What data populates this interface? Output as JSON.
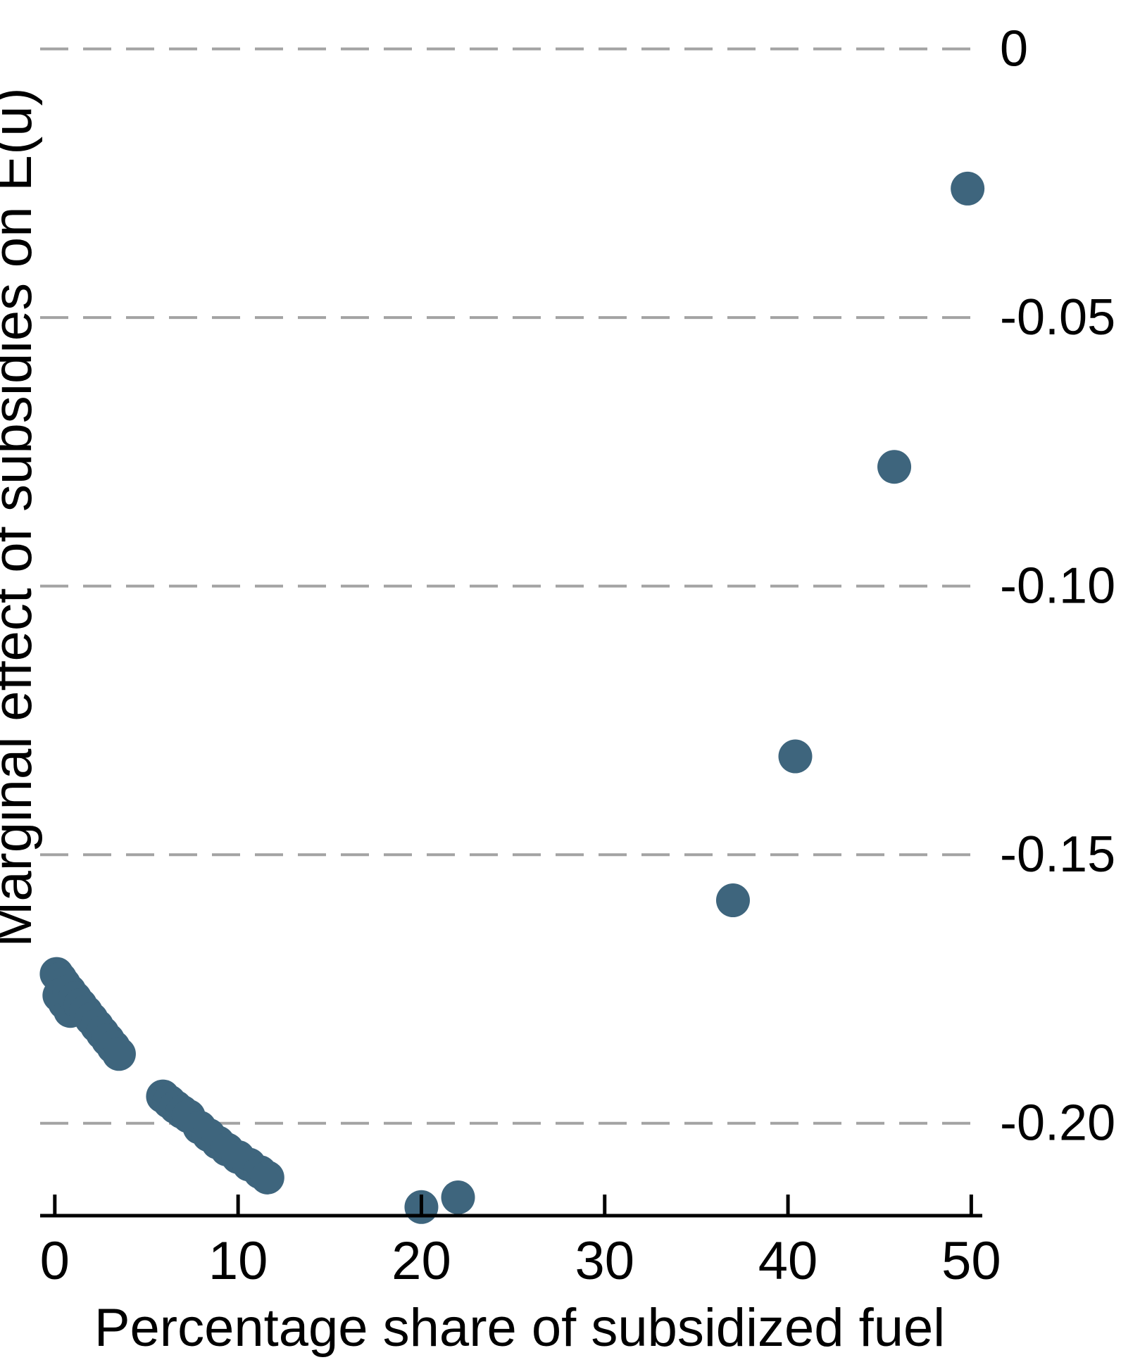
{
  "chart_data": {
    "type": "scatter",
    "title": "",
    "xlabel": "Percentage share of subsidized fuel",
    "ylabel": "Marginal effect of subsidies on E(u)",
    "x_ticks": [
      {
        "value": 0,
        "label": "0"
      },
      {
        "value": 10,
        "label": "10"
      },
      {
        "value": 20,
        "label": "20"
      },
      {
        "value": 30,
        "label": "30"
      },
      {
        "value": 40,
        "label": "40"
      },
      {
        "value": 50,
        "label": "50"
      }
    ],
    "y_ticks": [
      {
        "value": 0.0,
        "label": "0"
      },
      {
        "value": -0.05,
        "label": "-0.05"
      },
      {
        "value": -0.1,
        "label": "-0.10"
      },
      {
        "value": -0.15,
        "label": "-0.15"
      },
      {
        "value": -0.2,
        "label": "-0.20"
      }
    ],
    "xlim": [
      -0.8,
      50.6
    ],
    "ylim": [
      -0.2172,
      0.004
    ],
    "grid": "horizontal-dashed",
    "legend_position": "none",
    "marker_color": "#3e657d",
    "marker_radius_px": 24,
    "gridline_color": "#a3a3a3",
    "axis_color": "#000000",
    "points": [
      [
        0.1,
        -0.1722
      ],
      [
        0.3,
        -0.1731
      ],
      [
        0.5,
        -0.1741
      ],
      [
        0.25,
        -0.1762
      ],
      [
        0.55,
        -0.1776
      ],
      [
        0.85,
        -0.1791
      ],
      [
        0.8,
        -0.1754
      ],
      [
        1.1,
        -0.1767
      ],
      [
        1.4,
        -0.178
      ],
      [
        1.7,
        -0.1793
      ],
      [
        2.0,
        -0.1806
      ],
      [
        2.3,
        -0.1819
      ],
      [
        2.6,
        -0.1832
      ],
      [
        2.9,
        -0.1845
      ],
      [
        3.2,
        -0.1858
      ],
      [
        3.5,
        -0.1871
      ],
      [
        5.9,
        -0.195
      ],
      [
        6.25,
        -0.196
      ],
      [
        6.6,
        -0.197
      ],
      [
        6.95,
        -0.1979
      ],
      [
        7.3,
        -0.1987
      ],
      [
        7.9,
        -0.2008
      ],
      [
        8.4,
        -0.2022
      ],
      [
        8.9,
        -0.2036
      ],
      [
        9.4,
        -0.2049
      ],
      [
        10.0,
        -0.2063
      ],
      [
        10.6,
        -0.2077
      ],
      [
        11.2,
        -0.2091
      ],
      [
        11.6,
        -0.2101
      ],
      [
        20.0,
        -0.2156
      ],
      [
        22.0,
        -0.2138
      ],
      [
        37.0,
        -0.1585
      ],
      [
        40.4,
        -0.1317
      ],
      [
        45.8,
        -0.0778
      ],
      [
        49.8,
        -0.026
      ]
    ]
  }
}
